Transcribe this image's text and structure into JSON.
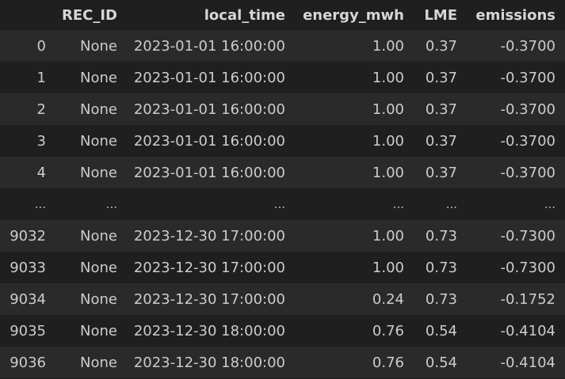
{
  "table": {
    "columns": [
      "",
      "REC_ID",
      "local_time",
      "energy_mwh",
      "LME",
      "emissions"
    ],
    "rows": [
      {
        "index": "0",
        "rec_id": "None",
        "local_time": "2023-01-01 16:00:00",
        "energy_mwh": "1.00",
        "lme": "0.37",
        "emissions": "-0.3700"
      },
      {
        "index": "1",
        "rec_id": "None",
        "local_time": "2023-01-01 16:00:00",
        "energy_mwh": "1.00",
        "lme": "0.37",
        "emissions": "-0.3700"
      },
      {
        "index": "2",
        "rec_id": "None",
        "local_time": "2023-01-01 16:00:00",
        "energy_mwh": "1.00",
        "lme": "0.37",
        "emissions": "-0.3700"
      },
      {
        "index": "3",
        "rec_id": "None",
        "local_time": "2023-01-01 16:00:00",
        "energy_mwh": "1.00",
        "lme": "0.37",
        "emissions": "-0.3700"
      },
      {
        "index": "4",
        "rec_id": "None",
        "local_time": "2023-01-01 16:00:00",
        "energy_mwh": "1.00",
        "lme": "0.37",
        "emissions": "-0.3700"
      },
      {
        "index": "...",
        "rec_id": "...",
        "local_time": "...",
        "energy_mwh": "...",
        "lme": "...",
        "emissions": "..."
      },
      {
        "index": "9032",
        "rec_id": "None",
        "local_time": "2023-12-30 17:00:00",
        "energy_mwh": "1.00",
        "lme": "0.73",
        "emissions": "-0.7300"
      },
      {
        "index": "9033",
        "rec_id": "None",
        "local_time": "2023-12-30 17:00:00",
        "energy_mwh": "1.00",
        "lme": "0.73",
        "emissions": "-0.7300"
      },
      {
        "index": "9034",
        "rec_id": "None",
        "local_time": "2023-12-30 17:00:00",
        "energy_mwh": "0.24",
        "lme": "0.73",
        "emissions": "-0.1752"
      },
      {
        "index": "9035",
        "rec_id": "None",
        "local_time": "2023-12-30 18:00:00",
        "energy_mwh": "0.76",
        "lme": "0.54",
        "emissions": "-0.4104"
      },
      {
        "index": "9036",
        "rec_id": "None",
        "local_time": "2023-12-30 18:00:00",
        "energy_mwh": "0.76",
        "lme": "0.54",
        "emissions": "-0.4104"
      }
    ]
  },
  "colors": {
    "background": "#1f1f1f",
    "stripe": "#2a2a2a",
    "text": "#cccccc"
  }
}
